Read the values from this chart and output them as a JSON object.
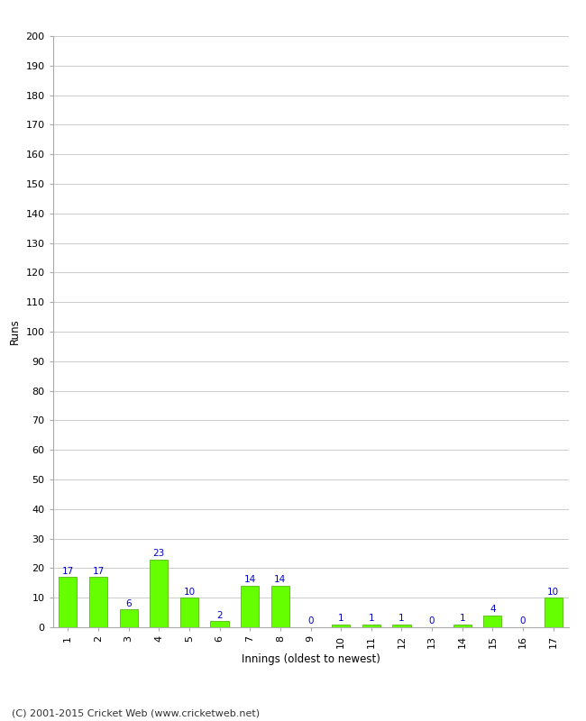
{
  "categories": [
    "1",
    "2",
    "3",
    "4",
    "5",
    "6",
    "7",
    "8",
    "9",
    "10",
    "11",
    "12",
    "13",
    "14",
    "15",
    "16",
    "17"
  ],
  "values": [
    17,
    17,
    6,
    23,
    10,
    2,
    14,
    14,
    0,
    1,
    1,
    1,
    0,
    1,
    4,
    0,
    10
  ],
  "bar_color": "#66ff00",
  "bar_edge_color": "#44aa00",
  "label_color": "#0000cc",
  "xlabel": "Innings (oldest to newest)",
  "ylabel": "Runs",
  "ylim": [
    0,
    200
  ],
  "ytick_step": 10,
  "footer": "(C) 2001-2015 Cricket Web (www.cricketweb.net)",
  "background_color": "#ffffff",
  "grid_color": "#cccccc",
  "label_fontsize": 7.5,
  "axis_tick_fontsize": 8,
  "axis_label_fontsize": 8.5,
  "footer_fontsize": 8
}
